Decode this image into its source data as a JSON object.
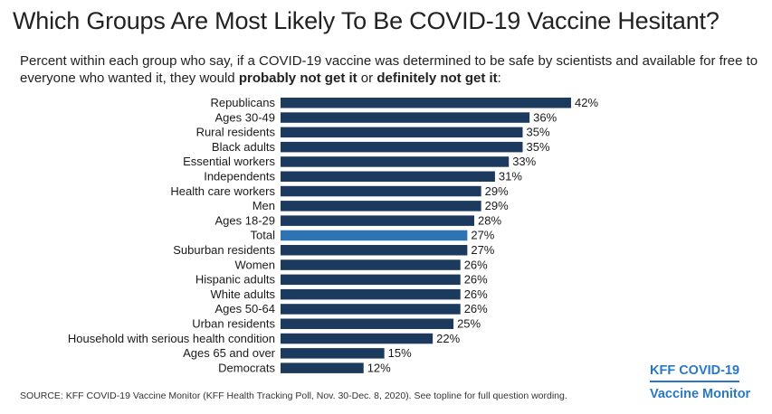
{
  "title": "Which Groups Are Most Likely To Be COVID-19 Vaccine Hesitant?",
  "subtitle": {
    "part1": "Percent within each group who say, if a COVID-19 vaccine was determined to be safe by scientists and available for free to everyone who wanted it, they would ",
    "bold1": "probably not get it",
    "part2": " or ",
    "bold2": "definitely not get it",
    "part3": ":"
  },
  "source": "SOURCE: KFF COVID-19 Vaccine Monitor (KFF Health Tracking Poll, Nov. 30-Dec. 8, 2020). See topline for full question wording.",
  "brand": {
    "line1": "KFF COVID-19",
    "line2": "Vaccine Monitor"
  },
  "colors": {
    "bar": "#1c3a5e",
    "highlight": "#2e74b5",
    "brand": "#2a78c4"
  },
  "chart_data": {
    "type": "bar",
    "orientation": "horizontal",
    "value_suffix": "%",
    "highlight_category": "Total",
    "categories": [
      "Republicans",
      "Ages 30-49",
      "Rural residents",
      "Black adults",
      "Essential workers",
      "Independents",
      "Health care workers",
      "Men",
      "Ages 18-29",
      "Total",
      "Suburban residents",
      "Women",
      "Hispanic adults",
      "White adults",
      "Ages 50-64",
      "Urban residents",
      "Household with serious health condition",
      "Ages 65 and over",
      "Democrats"
    ],
    "values": [
      42,
      36,
      35,
      35,
      33,
      31,
      29,
      29,
      28,
      27,
      27,
      26,
      26,
      26,
      26,
      25,
      22,
      15,
      12
    ],
    "xlim": [
      0,
      42
    ]
  }
}
